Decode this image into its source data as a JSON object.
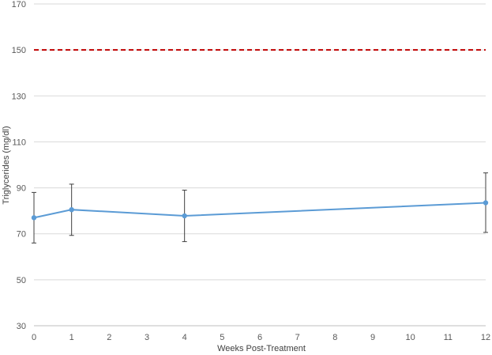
{
  "chart_data": {
    "type": "line",
    "xlabel": "Weeks Post-Treatment",
    "ylabel": "Triglycerides (mg/dl)",
    "xlim": [
      0,
      12
    ],
    "ylim": [
      30,
      170
    ],
    "x_ticks": [
      0,
      1,
      2,
      3,
      4,
      5,
      6,
      7,
      8,
      9,
      10,
      11,
      12
    ],
    "y_ticks": [
      30,
      50,
      70,
      90,
      110,
      130,
      150,
      170
    ],
    "grid": true,
    "series": [
      {
        "x": [
          0,
          1,
          4,
          12
        ],
        "values": [
          77,
          80.5,
          77.8,
          83.5
        ],
        "error_low": [
          66,
          69.3,
          66.6,
          70.6
        ],
        "error_high": [
          88,
          91.6,
          89,
          96.5
        ],
        "color": "#5b9bd5",
        "marker": "circle"
      }
    ],
    "reference_lines": [
      {
        "y": 150,
        "color": "#c00000",
        "style": "dashed"
      }
    ]
  }
}
